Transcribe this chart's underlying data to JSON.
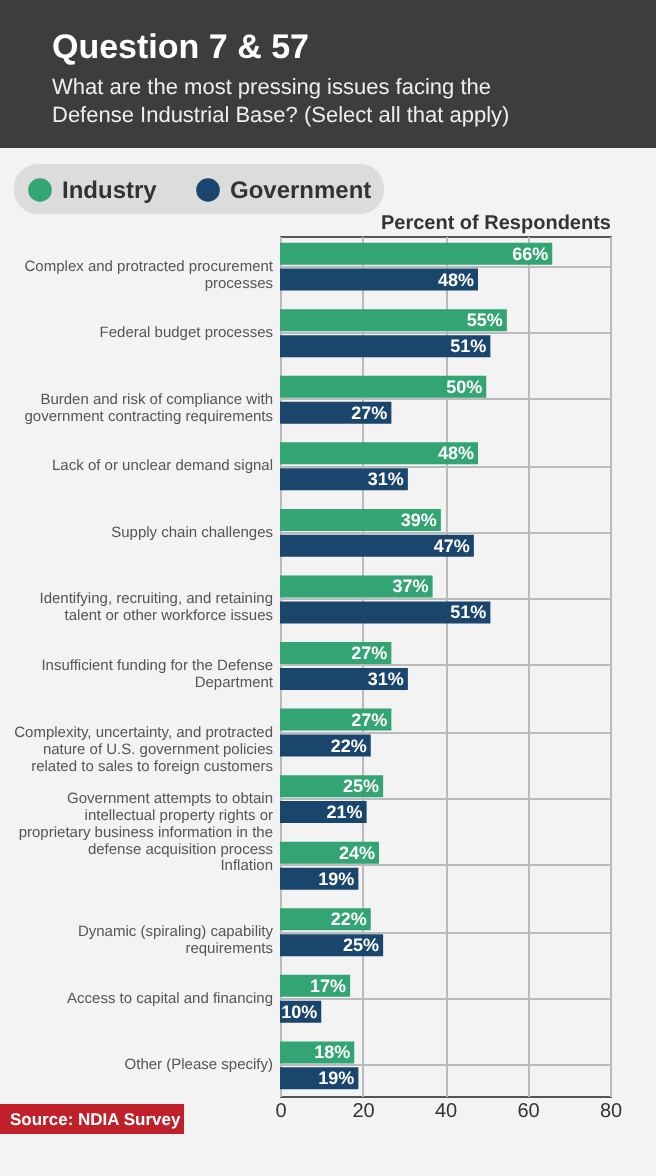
{
  "chart_data": {
    "type": "bar",
    "orientation": "horizontal",
    "title": "Question 7 & 57",
    "subtitle": "What are the most pressing issues facing the Defense Industrial Base? (Select all that apply)",
    "xlabel": "Percent of Respondents",
    "categories": [
      "Complex and protracted procurement processes",
      "Federal budget processes",
      "Burden and risk of compliance with government contracting requirements",
      "Lack of or unclear demand signal",
      "Supply chain challenges",
      "Identifying, recruiting, and retaining talent or other workforce issues",
      "Insufficient funding for the Defense Department",
      "Complexity, uncertainty, and protracted nature of U.S. government policies related to sales to foreign customers",
      "Government attempts to obtain intellectual property rights or proprietary business information in the defense acquisition process",
      "Inflation",
      "Dynamic (spiraling) capability requirements",
      "Access to capital and financing",
      "Other (Please specify)"
    ],
    "series": [
      {
        "name": "Industry",
        "color": "#33a474",
        "values": [
          66,
          55,
          50,
          48,
          39,
          37,
          27,
          27,
          25,
          24,
          22,
          17,
          18
        ],
        "value_labels": [
          "66%",
          "55%",
          "50%",
          "48%",
          "39%",
          "37%",
          "27%",
          "27%",
          "25%",
          "24%",
          "22%",
          "17%",
          "18%"
        ]
      },
      {
        "name": "Government",
        "color": "#1a466e",
        "values": [
          48,
          51,
          27,
          31,
          47,
          51,
          31,
          22,
          21,
          19,
          25,
          10,
          19
        ],
        "value_labels": [
          "48%",
          "51%",
          "27%",
          "31%",
          "47%",
          "51%",
          "31%",
          "22%",
          "21%",
          "19%",
          "25%",
          "10%",
          "19%"
        ]
      }
    ],
    "xlim": [
      0,
      80
    ],
    "xticks": [
      0,
      20,
      40,
      60,
      80
    ],
    "grid": true,
    "legend": "top left",
    "annotations": [
      "Source: NDIA Survey"
    ]
  }
}
